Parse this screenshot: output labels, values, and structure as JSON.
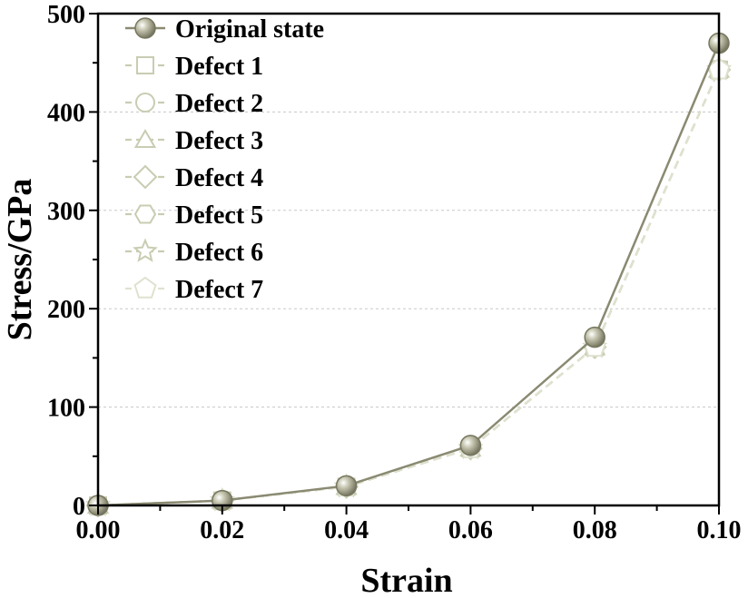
{
  "chart_data": {
    "type": "line",
    "title": "",
    "xlabel": "Strain",
    "ylabel": "Stress/GPa",
    "xlim": [
      0,
      0.1
    ],
    "ylim": [
      0,
      500
    ],
    "x_ticks": [
      0,
      0.02,
      0.04,
      0.06,
      0.08,
      0.1
    ],
    "x_tick_labels": [
      "0.00",
      "0.02",
      "0.04",
      "0.06",
      "0.08",
      "0.10"
    ],
    "y_ticks": [
      0,
      100,
      200,
      300,
      400,
      500
    ],
    "y_tick_labels": [
      "0",
      "100",
      "200",
      "300",
      "400",
      "500"
    ],
    "grid": "horizontal-dashed",
    "legend_position": "top-left",
    "x": [
      0,
      0.02,
      0.04,
      0.06,
      0.08,
      0.1
    ],
    "series": [
      {
        "name": "Original state",
        "marker": "sphere",
        "line": "solid",
        "color": "#8a8a72",
        "values": [
          0,
          5,
          20,
          61,
          171,
          470
        ]
      },
      {
        "name": "Defect 1",
        "marker": "square",
        "line": "dashed",
        "color": "#c8cdb2",
        "values": [
          0,
          5,
          19,
          58,
          161,
          443
        ]
      },
      {
        "name": "Defect 2",
        "marker": "circle",
        "line": "dashed",
        "color": "#c8cdb2",
        "values": [
          0,
          5,
          19,
          58,
          161,
          443
        ]
      },
      {
        "name": "Defect 3",
        "marker": "triangle",
        "line": "dashed",
        "color": "#c8cdb2",
        "values": [
          0,
          5,
          19,
          58,
          161,
          443
        ]
      },
      {
        "name": "Defect 4",
        "marker": "diamond",
        "line": "dashed",
        "color": "#c8cdb2",
        "values": [
          0,
          5,
          19,
          58,
          161,
          443
        ]
      },
      {
        "name": "Defect 5",
        "marker": "hexagon",
        "line": "dashed",
        "color": "#c8cdb2",
        "values": [
          0,
          5,
          19,
          58,
          161,
          443
        ]
      },
      {
        "name": "Defect 6",
        "marker": "star",
        "line": "dashed",
        "color": "#c8cdb2",
        "values": [
          0,
          5,
          19,
          58,
          161,
          443
        ]
      },
      {
        "name": "Defect 7",
        "marker": "pentagon",
        "line": "dashed",
        "color": "#dfe2cf",
        "values": [
          0,
          5,
          19,
          58,
          161,
          443
        ]
      }
    ]
  }
}
